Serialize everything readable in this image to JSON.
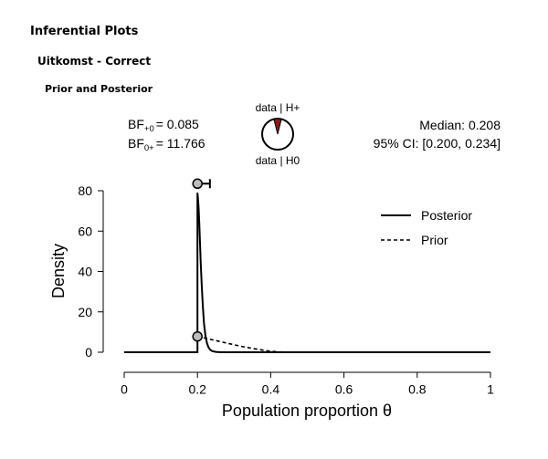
{
  "headings": {
    "title": "Inferential Plots",
    "subtitle": "Uitkomst - Correct",
    "section": "Prior and Posterior"
  },
  "bf": {
    "bf_plus0_label": "BF",
    "bf_plus0_sub": "+0",
    "bf_plus0_value": "= 0.085",
    "bf_0plus_label": "BF",
    "bf_0plus_sub": "0+",
    "bf_0plus_value": "= 11.766"
  },
  "pie": {
    "top_label": "data | H+",
    "bottom_label": "data | H0",
    "h_plus_fraction": 0.078,
    "h_plus_color": "#8b1a1a",
    "h0_color": "#ffffff"
  },
  "summary": {
    "median": "Median: 0.208",
    "ci": "95% CI: [0.200, 0.234]"
  },
  "chart_data": {
    "type": "line",
    "xlabel": "Population proportion θ",
    "ylabel": "Density",
    "xlim": [
      0,
      1
    ],
    "ylim": [
      0,
      80
    ],
    "x_ticks": [
      "0",
      "0.2",
      "0.4",
      "0.6",
      "0.8",
      "1"
    ],
    "y_ticks": [
      "0",
      "20",
      "40",
      "60",
      "80"
    ],
    "legend_position": "top-right",
    "series": [
      {
        "name": "Posterior",
        "style": "solid",
        "x": [
          0,
          0.2,
          0.2,
          0.201,
          0.203,
          0.205,
          0.207,
          0.209,
          0.212,
          0.215,
          0.218,
          0.222,
          0.226,
          0.23,
          0.235,
          0.24,
          0.25,
          0.26,
          0.27,
          0.3,
          0.4,
          0.6,
          0.8,
          1.0
        ],
        "y": [
          0,
          0,
          79,
          77,
          72,
          64,
          54,
          44,
          32,
          22,
          14,
          8,
          4.5,
          2.5,
          1.2,
          0.6,
          0.2,
          0.05,
          0,
          0,
          0,
          0,
          0,
          0
        ]
      },
      {
        "name": "Prior",
        "style": "dashed",
        "x": [
          0.2,
          0.22,
          0.25,
          0.28,
          0.3,
          0.32,
          0.35,
          0.38,
          0.4,
          0.42,
          0.45,
          0.5,
          0.6,
          0.8,
          1.0
        ],
        "y": [
          7.8,
          7.0,
          5.8,
          4.5,
          3.7,
          2.9,
          1.9,
          1.0,
          0.5,
          0.2,
          0.05,
          0,
          0,
          0,
          0
        ]
      }
    ],
    "markers": [
      {
        "x": 0.2,
        "y": 83.5,
        "label": "posterior at 0.2"
      },
      {
        "x": 0.2,
        "y": 7.8,
        "label": "prior at 0.2"
      }
    ],
    "ci_bar": {
      "from": 0.2,
      "to": 0.234,
      "y": 83.5
    }
  }
}
